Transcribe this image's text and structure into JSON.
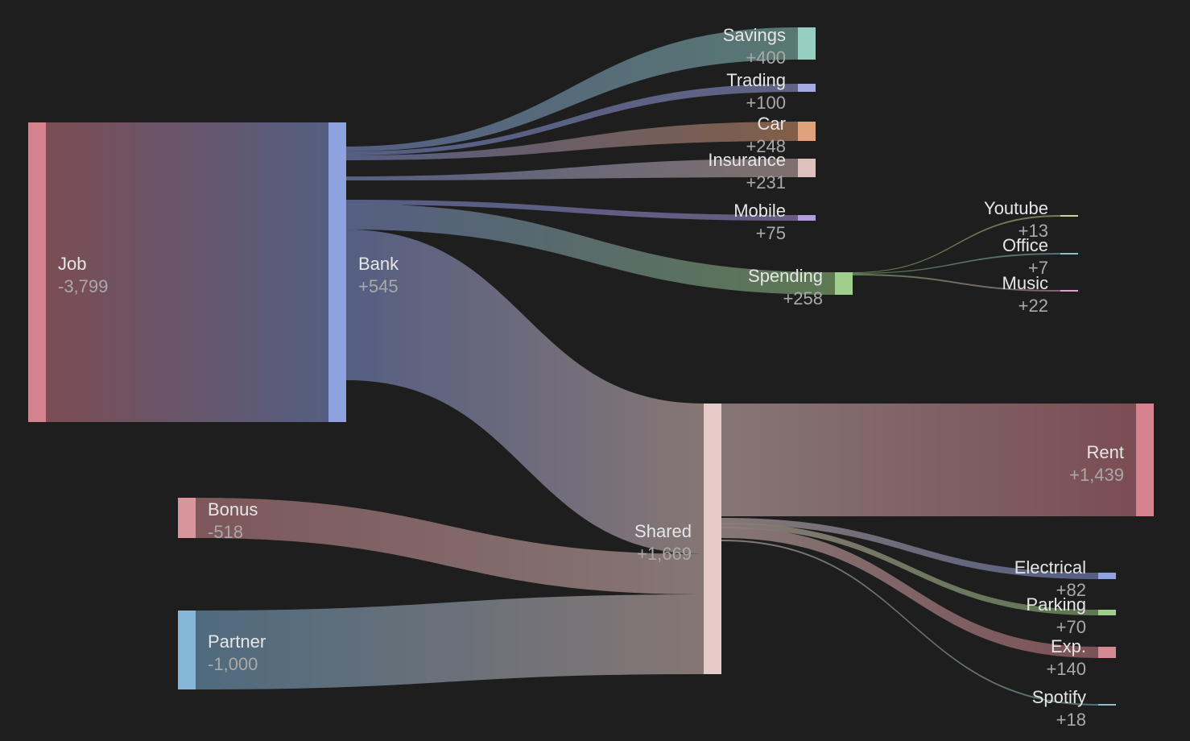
{
  "diagram": {
    "type": "sankey",
    "nodes": [
      {
        "id": "job",
        "name": "Job",
        "value": "-3,799",
        "color": "#d4828e"
      },
      {
        "id": "bank",
        "name": "Bank",
        "value": "+545",
        "color": "#8fa2e0"
      },
      {
        "id": "bonus",
        "name": "Bonus",
        "value": "-518",
        "color": "#d8959b"
      },
      {
        "id": "partner",
        "name": "Partner",
        "value": "-1,000",
        "color": "#86b6d8"
      },
      {
        "id": "shared",
        "name": "Shared",
        "value": "+1,669",
        "color": "#e5cbc8"
      },
      {
        "id": "savings",
        "name": "Savings",
        "value": "+400",
        "color": "#96cec2"
      },
      {
        "id": "trading",
        "name": "Trading",
        "value": "+100",
        "color": "#a6aae4"
      },
      {
        "id": "car",
        "name": "Car",
        "value": "+248",
        "color": "#e0a27b"
      },
      {
        "id": "insurance",
        "name": "Insurance",
        "value": "+231",
        "color": "#dcc1bd"
      },
      {
        "id": "mobile",
        "name": "Mobile",
        "value": "+75",
        "color": "#b49ce2"
      },
      {
        "id": "spending",
        "name": "Spending",
        "value": "+258",
        "color": "#9fcf8b"
      },
      {
        "id": "youtube",
        "name": "Youtube",
        "value": "+13",
        "color": "#cfd197"
      },
      {
        "id": "office",
        "name": "Office",
        "value": "+7",
        "color": "#8fbfcc"
      },
      {
        "id": "music",
        "name": "Music",
        "value": "+22",
        "color": "#d9a4cb"
      },
      {
        "id": "rent",
        "name": "Rent",
        "value": "+1,439",
        "color": "#d4828e"
      },
      {
        "id": "electrical",
        "name": "Electrical",
        "value": "+82",
        "color": "#8fa2e0"
      },
      {
        "id": "parking",
        "name": "Parking",
        "value": "+70",
        "color": "#9fcf8b"
      },
      {
        "id": "exp",
        "name": "Exp.",
        "value": "+140",
        "color": "#d48a92"
      },
      {
        "id": "spotify",
        "name": "Spotify",
        "value": "+18",
        "color": "#8fbfcc"
      }
    ],
    "links": [
      {
        "source": "job",
        "target": "bank",
        "value": 3799
      },
      {
        "source": "bank",
        "target": "savings",
        "value": 400
      },
      {
        "source": "bank",
        "target": "trading",
        "value": 100
      },
      {
        "source": "bank",
        "target": "car",
        "value": 248
      },
      {
        "source": "bank",
        "target": "insurance",
        "value": 231
      },
      {
        "source": "bank",
        "target": "mobile",
        "value": 75
      },
      {
        "source": "bank",
        "target": "spending",
        "value": 300
      },
      {
        "source": "bank",
        "target": "shared",
        "value": 1900
      },
      {
        "source": "bonus",
        "target": "shared",
        "value": 518
      },
      {
        "source": "partner",
        "target": "shared",
        "value": 1000
      },
      {
        "source": "spending",
        "target": "youtube",
        "value": 13
      },
      {
        "source": "spending",
        "target": "office",
        "value": 7
      },
      {
        "source": "spending",
        "target": "music",
        "value": 22
      },
      {
        "source": "shared",
        "target": "rent",
        "value": 1439
      },
      {
        "source": "shared",
        "target": "electrical",
        "value": 82
      },
      {
        "source": "shared",
        "target": "parking",
        "value": 70
      },
      {
        "source": "shared",
        "target": "exp",
        "value": 140
      },
      {
        "source": "shared",
        "target": "spotify",
        "value": 18
      }
    ]
  }
}
